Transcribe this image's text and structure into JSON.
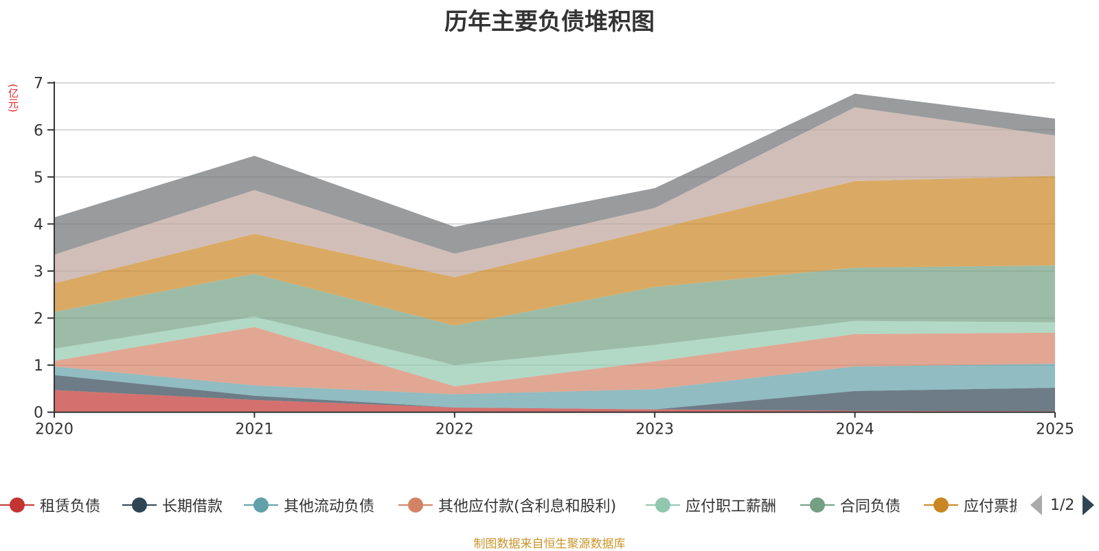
{
  "title": "历年主要负债堆积图",
  "unit_label": "(亿元)",
  "footer": "制图数据来自恒生聚源数据库",
  "legend_pager": {
    "text": "1/2",
    "prev_icon": "triangle-left-icon",
    "next_icon": "triangle-right-icon"
  },
  "chart_data": {
    "type": "area",
    "stacked": true,
    "title": "历年主要负债堆积图",
    "xlabel": "",
    "ylabel": "(亿元)",
    "x": [
      "2020",
      "2021",
      "2022",
      "2023",
      "2024",
      "2025"
    ],
    "ylim": [
      0,
      7
    ],
    "yticks": [
      0,
      1,
      2,
      3,
      4,
      5,
      6,
      7
    ],
    "grid": true,
    "legend_position": "bottom",
    "series": [
      {
        "name": "租赁负债",
        "color": "#c23531",
        "values": [
          0.47,
          0.26,
          0.1,
          0.06,
          0.03,
          0.02
        ]
      },
      {
        "name": "长期借款",
        "color": "#2f4554",
        "values": [
          0.32,
          0.09,
          0.0,
          0.0,
          0.42,
          0.5
        ]
      },
      {
        "name": "其他流动负债",
        "color": "#61a0a8",
        "values": [
          0.18,
          0.22,
          0.28,
          0.43,
          0.52,
          0.51
        ]
      },
      {
        "name": "其他应付款(含利息和股利)",
        "color": "#d48265",
        "values": [
          0.12,
          1.24,
          0.17,
          0.59,
          0.69,
          0.66
        ]
      },
      {
        "name": "应付职工薪酬",
        "color": "#91c7ae",
        "values": [
          0.26,
          0.22,
          0.45,
          0.35,
          0.28,
          0.22
        ]
      },
      {
        "name": "合同负债",
        "color": "#749f83",
        "values": [
          0.78,
          0.91,
          0.84,
          1.23,
          1.13,
          1.21
        ]
      },
      {
        "name": "应付票据",
        "color": "#ca8622",
        "values": [
          0.61,
          0.85,
          1.03,
          1.23,
          1.84,
          1.9
        ]
      },
      {
        "name": "",
        "color": "#bda29a",
        "values": [
          0.61,
          0.93,
          0.5,
          0.45,
          1.57,
          0.86
        ]
      },
      {
        "name": "",
        "color": "#6e7074",
        "values": [
          0.79,
          0.73,
          0.57,
          0.42,
          0.29,
          0.36
        ]
      }
    ],
    "legend_visible": [
      "租赁负债",
      "长期借款",
      "其他流动负债",
      "其他应付款(含利息和股利)",
      "应付职工薪酬",
      "合同负债",
      "应付票据"
    ]
  }
}
